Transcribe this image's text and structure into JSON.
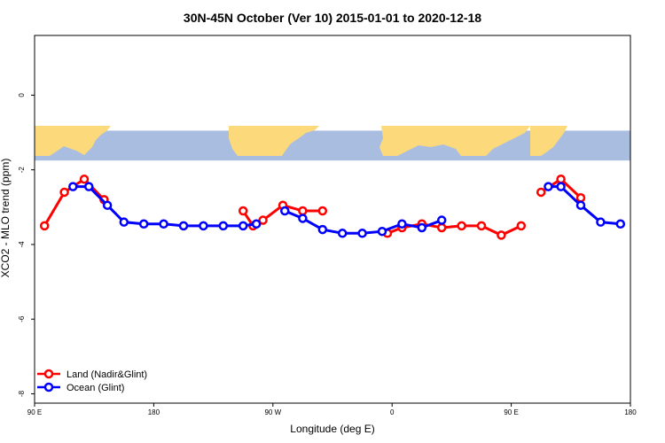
{
  "chart_data": {
    "type": "line",
    "title": "30N-45N October (Ver 10)   2015-01-01 to 2020-12-18",
    "xlabel": "Longitude (deg E)",
    "ylabel": "XCO2 - MLO trend (ppm)",
    "xlim": [
      90,
      450
    ],
    "ylim": [
      -8.25,
      1.6
    ],
    "x_ticks": [
      90,
      180,
      270,
      360,
      450
    ],
    "x_tick_labels": [
      "90 E",
      "180",
      "90 W",
      "0",
      "90 E",
      "180"
    ],
    "x_tick_values": [
      90,
      180,
      270,
      360,
      450,
      540
    ],
    "y_ticks": [
      0,
      -2,
      -4,
      -6,
      -8
    ],
    "y_tick_labels": [
      "0",
      "-2",
      "-4",
      "-6",
      "-8"
    ],
    "map_band": {
      "y_top": -0.95,
      "y_bottom": -1.75,
      "ocean_color": "#a9bde0",
      "land_color": "#fcd97a"
    },
    "legend": {
      "position": "bottom-left"
    },
    "series": [
      {
        "name": "Land (Nadir&Glint)",
        "color": "#ff0000",
        "segments": [
          {
            "x": [
              97.5,
              112.5,
              127.5,
              142.5
            ],
            "y": [
              -3.5,
              -2.6,
              -2.25,
              -2.8
            ]
          },
          {
            "x": [
              247.5,
              255
            ],
            "y": [
              -3.1,
              -3.5
            ]
          },
          {
            "x": [
              262.5,
              277.5,
              292.5,
              307.5
            ],
            "y": [
              -3.35,
              -2.95,
              -3.1,
              -3.1
            ]
          },
          {
            "x": [
              356.5,
              367.5,
              382.5,
              397.5,
              412.5,
              427.5,
              442.5,
              457.5
            ],
            "y": [
              -3.7,
              -3.55,
              -3.45,
              -3.55,
              -3.5,
              -3.5,
              -3.75,
              -3.5
            ]
          },
          {
            "x": [
              472.5,
              487.5,
              502.5
            ],
            "y": [
              -2.6,
              -2.25,
              -2.75
            ]
          }
        ]
      },
      {
        "name": "Ocean (Glint)",
        "color": "#0000ff",
        "segments": [
          {
            "x": [
              119,
              131,
              145,
              157.5,
              172.5,
              187.5,
              202.5,
              217.5,
              232.5,
              247.5,
              257.5
            ],
            "y": [
              -2.45,
              -2.45,
              -2.95,
              -3.4,
              -3.45,
              -3.45,
              -3.5,
              -3.5,
              -3.5,
              -3.5,
              -3.45
            ]
          },
          {
            "x": [
              279,
              292.5,
              307.5,
              322.5,
              337.5,
              352.5,
              367.5,
              382.5,
              397.5
            ],
            "y": [
              -3.1,
              -3.3,
              -3.6,
              -3.7,
              -3.7,
              -3.65,
              -3.45,
              -3.55,
              -3.35
            ]
          },
          {
            "x": [
              478,
              487.5,
              502.5,
              517.5,
              532.5
            ],
            "y": [
              -2.45,
              -2.45,
              -2.95,
              -3.4,
              -3.45
            ]
          }
        ]
      }
    ]
  }
}
